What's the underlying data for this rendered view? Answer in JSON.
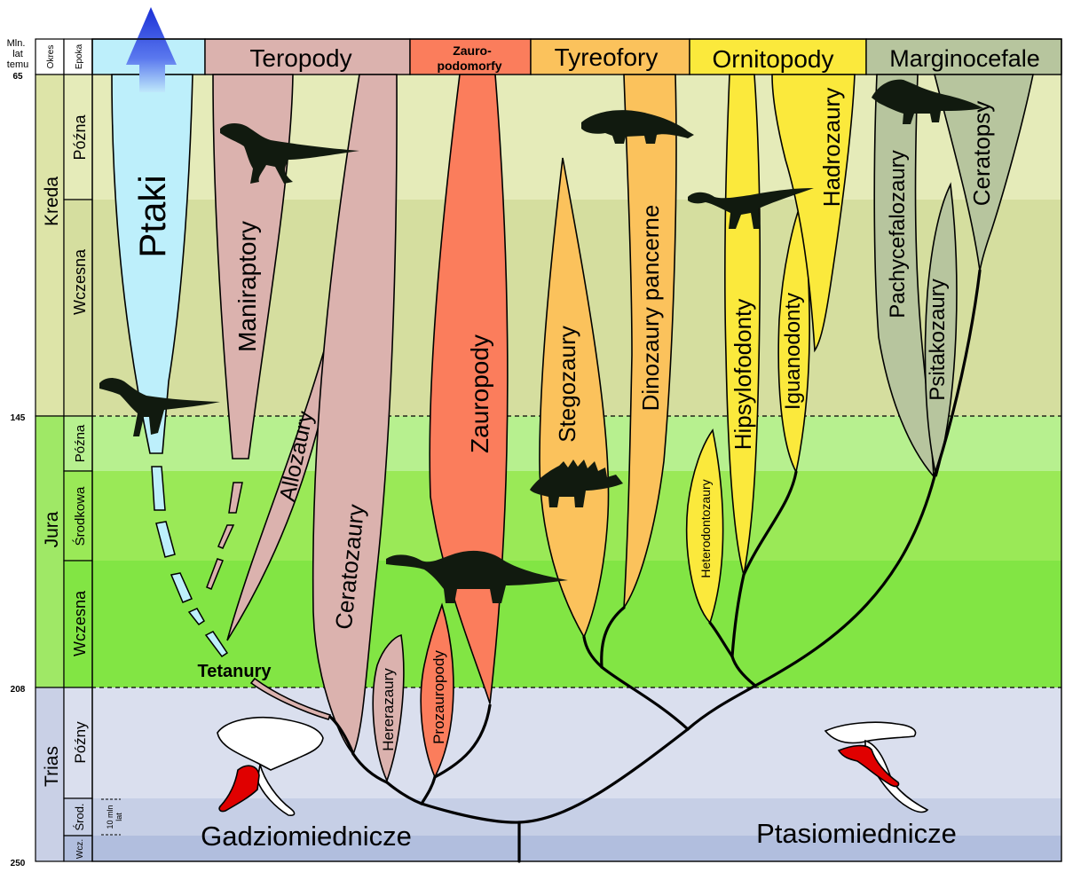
{
  "axis": {
    "header": [
      "Mln.",
      "lat",
      "temu"
    ],
    "period_header": "Okres",
    "epoch_header": "Epoka",
    "ticks": [
      "65",
      "145",
      "208",
      "250"
    ],
    "scale_bar_label": [
      "10 mln",
      "lat"
    ]
  },
  "periods": {
    "cretaceous": "Kreda",
    "jurassic": "Jura",
    "triassic": "Trias"
  },
  "epochs": {
    "late_cretaceous": "Późna",
    "early_cretaceous": "Wczesna",
    "late_jurassic": "Późna",
    "middle_jurassic": "Środkowa",
    "early_jurassic": "Wczesna",
    "late_triassic": "Późny",
    "middle_triassic": "Środ.",
    "early_triassic": "Wcz."
  },
  "group_headers": {
    "theropods": "Teropody",
    "sauropodomorphs": [
      "Zauro-",
      "podomorfy"
    ],
    "thyreophorans": "Tyreofory",
    "ornithopods": "Ornitopody",
    "marginocephalians": "Marginocefale"
  },
  "clades": {
    "birds": "Ptaki",
    "maniraptorans": "Maniraptory",
    "allosaurs": "Allozaury",
    "ceratosaurs": "Ceratozaury",
    "tetanurans": "Tetanury",
    "herrerasaurs": "Hererazaury",
    "prosauropods": "Prozauropody",
    "sauropods": "Zauropody",
    "stegosaurs": "Stegozaury",
    "ankylosaurs": "Dinozaury pancerne",
    "heterodontosaurs": "Heterodontozaury",
    "hypsilophodonts": "Hipsylofodonty",
    "iguanodonts": "Iguanodonty",
    "hadrosaurs": "Hadrozaury",
    "pachycephalosaurs": "Pachycefalozaury",
    "psittacosaurs": "Psitakozaury",
    "ceratopsians": "Ceratopsy"
  },
  "lineages": {
    "saurischia": "Gadziomiednicze",
    "ornithischia": "Ptasiomiednicze"
  },
  "colors": {
    "birds": "#bdeffb",
    "theropods": "#dbb2ae",
    "sauropodomorphs": "#fb7d5c",
    "thyreophorans": "#fbc25c",
    "ornithopods": "#fbe93c",
    "marginocephalians": "#b7c59e",
    "hip_highlight": "#e00000",
    "late_cretaceous_band": "#e5ebb9",
    "early_cretaceous_band": "#d5de9f",
    "late_jurassic_band": "#b7f08f",
    "middle_jurassic_band": "#9ae957",
    "early_jurassic_band": "#82e544",
    "late_triassic_band": "#dadfee",
    "middle_triassic_band": "#c6cfe6",
    "early_triassic_band": "#b1bede"
  }
}
